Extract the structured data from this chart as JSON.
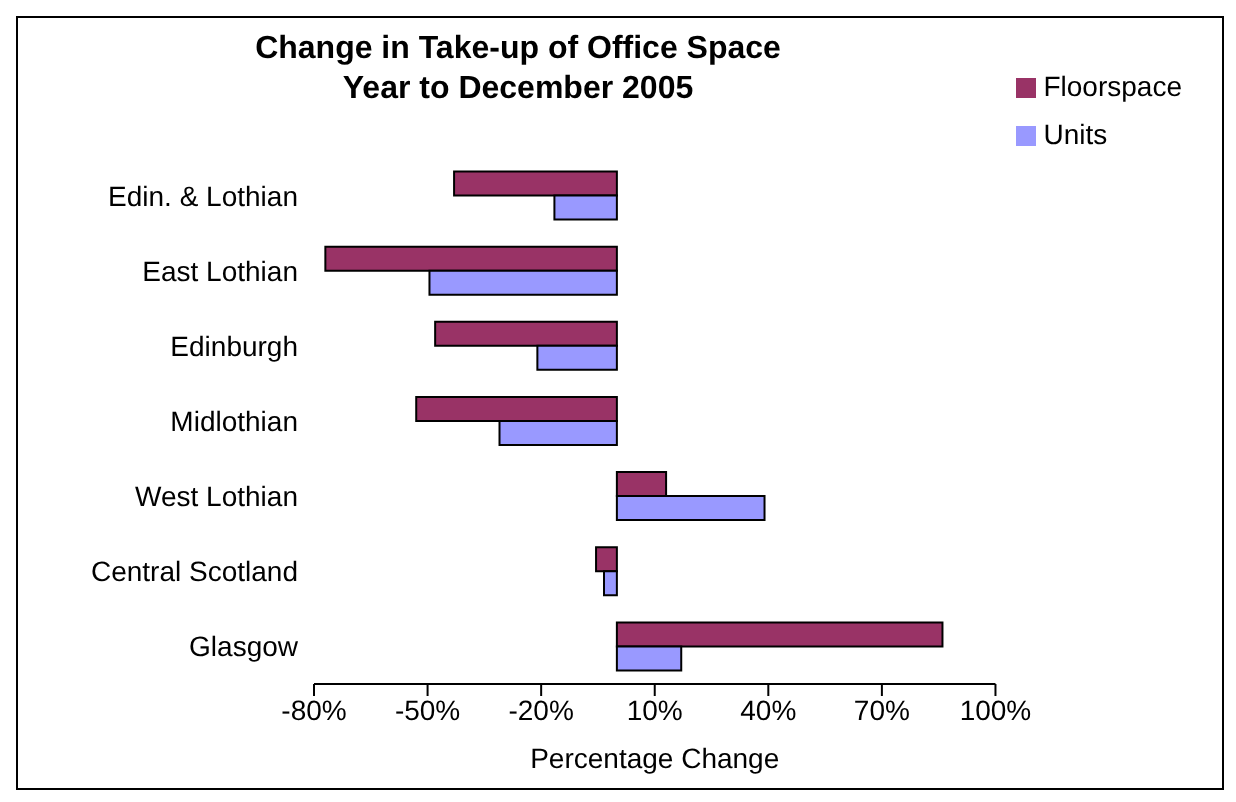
{
  "chart_data": {
    "type": "bar",
    "orientation": "horizontal",
    "title": "Change in Take-up of Office Space\nYear to December 2005",
    "xlabel": "Percentage Change",
    "categories": [
      "Edin. & Lothian",
      "East Lothian",
      "Edinburgh",
      "Midlothian",
      "West Lothian",
      "Central Scotland",
      "Glasgow"
    ],
    "series": [
      {
        "name": "Floorspace",
        "color": "#993366",
        "values": [
          -43,
          -77,
          -48,
          -53,
          13,
          -5.5,
          86
        ]
      },
      {
        "name": "Units",
        "color": "#9999ff",
        "values": [
          -16.5,
          -49.5,
          -21,
          -31,
          39,
          -3.4,
          17
        ]
      }
    ],
    "xlim": [
      -80,
      100
    ],
    "xticks": [
      {
        "value": -80,
        "label": "-80%"
      },
      {
        "value": -50,
        "label": "-50%"
      },
      {
        "value": -20,
        "label": "-20%"
      },
      {
        "value": 10,
        "label": "10%"
      },
      {
        "value": 40,
        "label": "40%"
      },
      {
        "value": 70,
        "label": "70%"
      },
      {
        "value": 100,
        "label": "100%"
      }
    ],
    "legend": "top right"
  }
}
